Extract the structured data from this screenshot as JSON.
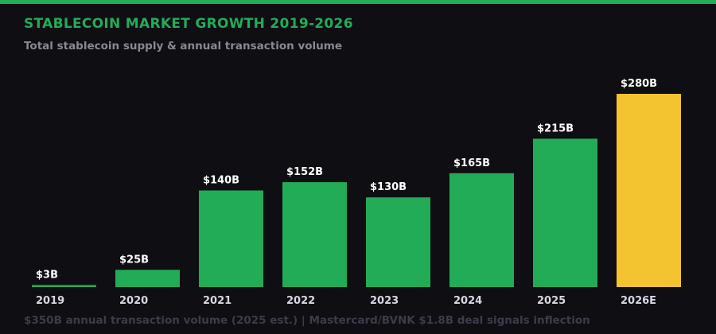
{
  "title": "STABLECOIN MARKET GROWTH 2019-2026",
  "subtitle": "Total stablecoin supply & annual transaction volume",
  "footer": "$350B annual transaction volume (2025 est.) | Mastercard/BVNK $1.8B deal signals inflection",
  "colors": {
    "accent": "#22ac57",
    "highlight": "#f4c430",
    "background": "#0e0e13"
  },
  "chart_data": {
    "type": "bar",
    "title": "STABLECOIN MARKET GROWTH 2019-2026",
    "subtitle": "Total stablecoin supply & annual transaction volume",
    "categories": [
      "2019",
      "2020",
      "2021",
      "2022",
      "2023",
      "2024",
      "2025",
      "2026E"
    ],
    "values": [
      3,
      25,
      140,
      152,
      130,
      165,
      215,
      280
    ],
    "data_labels": [
      "$3B",
      "$25B",
      "$140B",
      "$152B",
      "$130B",
      "$165B",
      "$215B",
      "$280B"
    ],
    "unit": "B USD",
    "highlighted_category": "2026E",
    "ylim": [
      0,
      280
    ],
    "grid": false,
    "legend": "none"
  }
}
